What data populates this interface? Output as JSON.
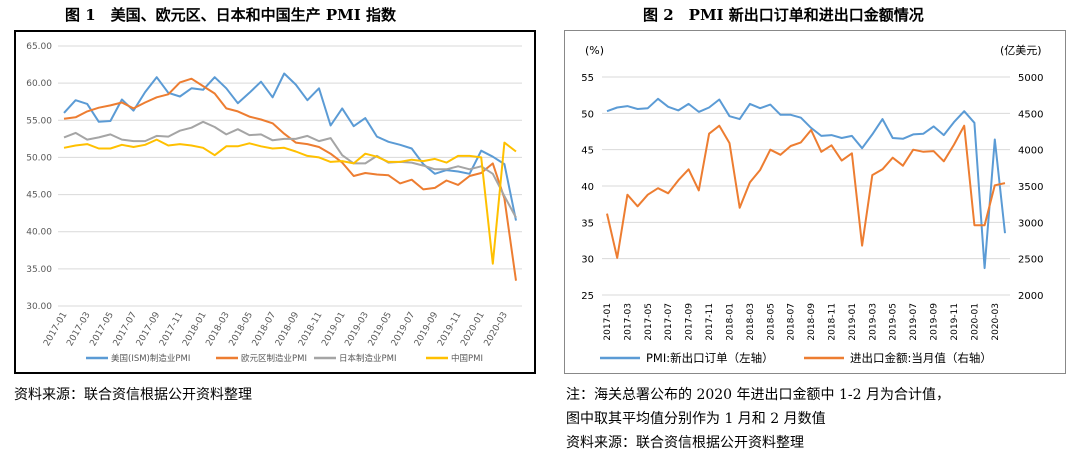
{
  "left": {
    "title": "图 1　美国、欧元区、日本和中国生产 PMI 指数",
    "source": "资料来源：联合资信根据公开资料整理"
  },
  "right": {
    "title": "图 2　PMI 新出口订单和进出口金额情况",
    "note_line1": "注：海关总署公布的 2020 年进出口金额中 1-2 月为合计值，",
    "note_line2": "图中取其平均值分别作为 1 月和 2 月数值",
    "source": "资料来源：联合资信根据公开资料整理"
  },
  "chart_data": [
    {
      "type": "line",
      "x_ticks": [
        "2017-01",
        "2017-03",
        "2017-05",
        "2017-07",
        "2017-09",
        "2017-11",
        "2018-01",
        "2018-03",
        "2018-05",
        "2018-07",
        "2018-09",
        "2018-11",
        "2019-01",
        "2019-03",
        "2019-05",
        "2019-07",
        "2019-09",
        "2019-11",
        "2020-01",
        "2020-03"
      ],
      "ylim": [
        30,
        65
      ],
      "y_ticks": [
        "65.00",
        "60.00",
        "55.00",
        "50.00",
        "45.00",
        "40.00",
        "35.00",
        "30.00"
      ],
      "grid": true,
      "legend_position": "bottom",
      "series": [
        {
          "name": "美国(ISM)制造业PMI",
          "color": "#5b9bd5",
          "values": [
            56.0,
            57.7,
            57.2,
            54.8,
            54.9,
            57.8,
            56.3,
            58.8,
            60.8,
            58.7,
            58.2,
            59.3,
            59.1,
            60.8,
            59.3,
            57.3,
            58.7,
            60.2,
            58.1,
            61.3,
            59.8,
            57.7,
            59.3,
            54.3,
            56.6,
            54.2,
            55.3,
            52.8,
            52.1,
            51.7,
            51.2,
            49.1,
            47.8,
            48.3,
            48.1,
            47.8,
            50.9,
            50.1,
            49.1,
            41.5
          ]
        },
        {
          "name": "欧元区制造业PMI",
          "color": "#ed7d31",
          "values": [
            55.2,
            55.4,
            56.2,
            56.7,
            57.0,
            57.4,
            56.6,
            57.4,
            58.1,
            58.5,
            60.1,
            60.6,
            59.6,
            58.6,
            56.6,
            56.2,
            55.5,
            55.1,
            54.6,
            53.2,
            52.0,
            51.8,
            51.4,
            50.5,
            49.3,
            47.5,
            47.9,
            47.7,
            47.6,
            46.5,
            47.0,
            45.7,
            45.9,
            46.9,
            46.3,
            47.5,
            47.9,
            49.2,
            44.5,
            33.4
          ]
        },
        {
          "name": "日本制造业PMI",
          "color": "#a5a5a5",
          "values": [
            52.7,
            53.3,
            52.4,
            52.7,
            53.1,
            52.4,
            52.2,
            52.2,
            52.9,
            52.8,
            53.6,
            54.0,
            54.8,
            54.1,
            53.1,
            53.8,
            53.0,
            53.1,
            52.3,
            52.5,
            52.5,
            52.9,
            52.2,
            52.6,
            50.3,
            49.2,
            49.2,
            50.2,
            49.3,
            49.4,
            49.3,
            48.9,
            48.4,
            48.4,
            48.8,
            48.4,
            48.8,
            47.8,
            44.8,
            41.9
          ]
        },
        {
          "name": "中国PMI",
          "color": "#ffc000",
          "values": [
            51.3,
            51.6,
            51.8,
            51.2,
            51.2,
            51.7,
            51.4,
            51.7,
            52.4,
            51.6,
            51.8,
            51.6,
            51.3,
            50.3,
            51.5,
            51.5,
            51.9,
            51.5,
            51.2,
            51.3,
            50.8,
            50.2,
            50.0,
            49.4,
            49.5,
            49.2,
            50.5,
            50.1,
            49.4,
            49.4,
            49.7,
            49.5,
            49.8,
            49.3,
            50.2,
            50.2,
            50.0,
            35.7,
            52.0,
            50.8
          ]
        }
      ]
    },
    {
      "type": "line",
      "unit_left": "(%)",
      "unit_right": "(亿美元)",
      "x_ticks": [
        "2017-01",
        "2017-03",
        "2017-05",
        "2017-07",
        "2017-09",
        "2017-11",
        "2018-01",
        "2018-03",
        "2018-05",
        "2018-07",
        "2018-09",
        "2018-11",
        "2019-01",
        "2019-03",
        "2019-05",
        "2019-07",
        "2019-09",
        "2019-11",
        "2020-01",
        "2020-03"
      ],
      "ylim_left": [
        25,
        55
      ],
      "y_ticks_left": [
        "55",
        "50",
        "45",
        "40",
        "35",
        "30",
        "25"
      ],
      "ylim_right": [
        2000,
        5000
      ],
      "y_ticks_right": [
        "5000",
        "4500",
        "4000",
        "3500",
        "3000",
        "2500",
        "2000"
      ],
      "grid": true,
      "legend_position": "bottom",
      "series": [
        {
          "name": "PMI:新出口订单（左轴）",
          "axis": "left",
          "color": "#5b9bd5",
          "values": [
            50.3,
            50.8,
            51.0,
            50.6,
            50.7,
            52.0,
            50.9,
            50.4,
            51.3,
            50.2,
            50.8,
            51.9,
            49.6,
            49.2,
            51.3,
            50.7,
            51.2,
            49.8,
            49.8,
            49.4,
            48.0,
            46.9,
            47.0,
            46.6,
            46.9,
            45.2,
            47.1,
            49.2,
            46.6,
            46.5,
            47.1,
            47.2,
            48.2,
            47.0,
            48.8,
            50.3,
            48.7,
            28.7,
            46.4,
            33.5
          ]
        },
        {
          "name": "进出口金额:当月值（右轴）",
          "axis": "right",
          "color": "#ed7d31",
          "values": [
            3120,
            2510,
            3380,
            3220,
            3380,
            3470,
            3400,
            3580,
            3730,
            3440,
            4220,
            4330,
            4090,
            3200,
            3550,
            3720,
            4000,
            3930,
            4050,
            4100,
            4270,
            3970,
            4060,
            3850,
            3950,
            2680,
            3650,
            3730,
            3890,
            3780,
            4000,
            3970,
            3980,
            3840,
            4070,
            4330,
            2960,
            2960,
            3510,
            3540
          ]
        }
      ]
    }
  ]
}
